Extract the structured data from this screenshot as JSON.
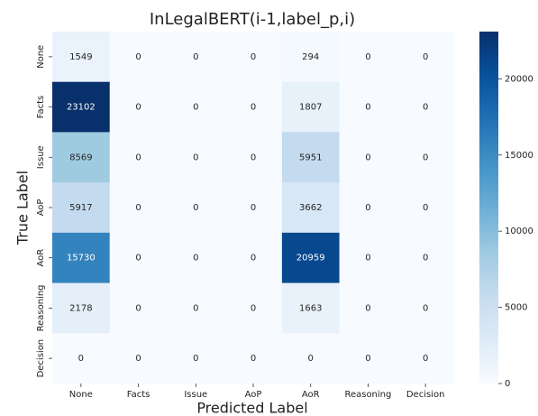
{
  "chart_data": {
    "type": "heatmap",
    "title": "InLegalBERT(i-1,label_p,i)",
    "x_label": "Predicted Label",
    "y_label": "True Label",
    "x_categories": [
      "None",
      "Facts",
      "Issue",
      "AoP",
      "AoR",
      "Reasoning",
      "Decision"
    ],
    "y_categories": [
      "None",
      "Facts",
      "Issue",
      "AoP",
      "AoR",
      "Reasoning",
      "Decision"
    ],
    "values": [
      [
        1549,
        0,
        0,
        0,
        294,
        0,
        0
      ],
      [
        23102,
        0,
        0,
        0,
        1807,
        0,
        0
      ],
      [
        8569,
        0,
        0,
        0,
        5951,
        0,
        0
      ],
      [
        5917,
        0,
        0,
        0,
        3662,
        0,
        0
      ],
      [
        15730,
        0,
        0,
        0,
        20959,
        0,
        0
      ],
      [
        2178,
        0,
        0,
        0,
        1663,
        0,
        0
      ],
      [
        0,
        0,
        0,
        0,
        0,
        0,
        0
      ]
    ],
    "zlim": [
      0,
      23102
    ],
    "zticks": [
      0,
      5000,
      10000,
      15000,
      20000
    ],
    "colorscale": [
      "#f7fbff",
      "#deebf7",
      "#c6dbef",
      "#9ecae1",
      "#6baed6",
      "#4292c6",
      "#2171b5",
      "#08519c",
      "#08306b"
    ]
  }
}
